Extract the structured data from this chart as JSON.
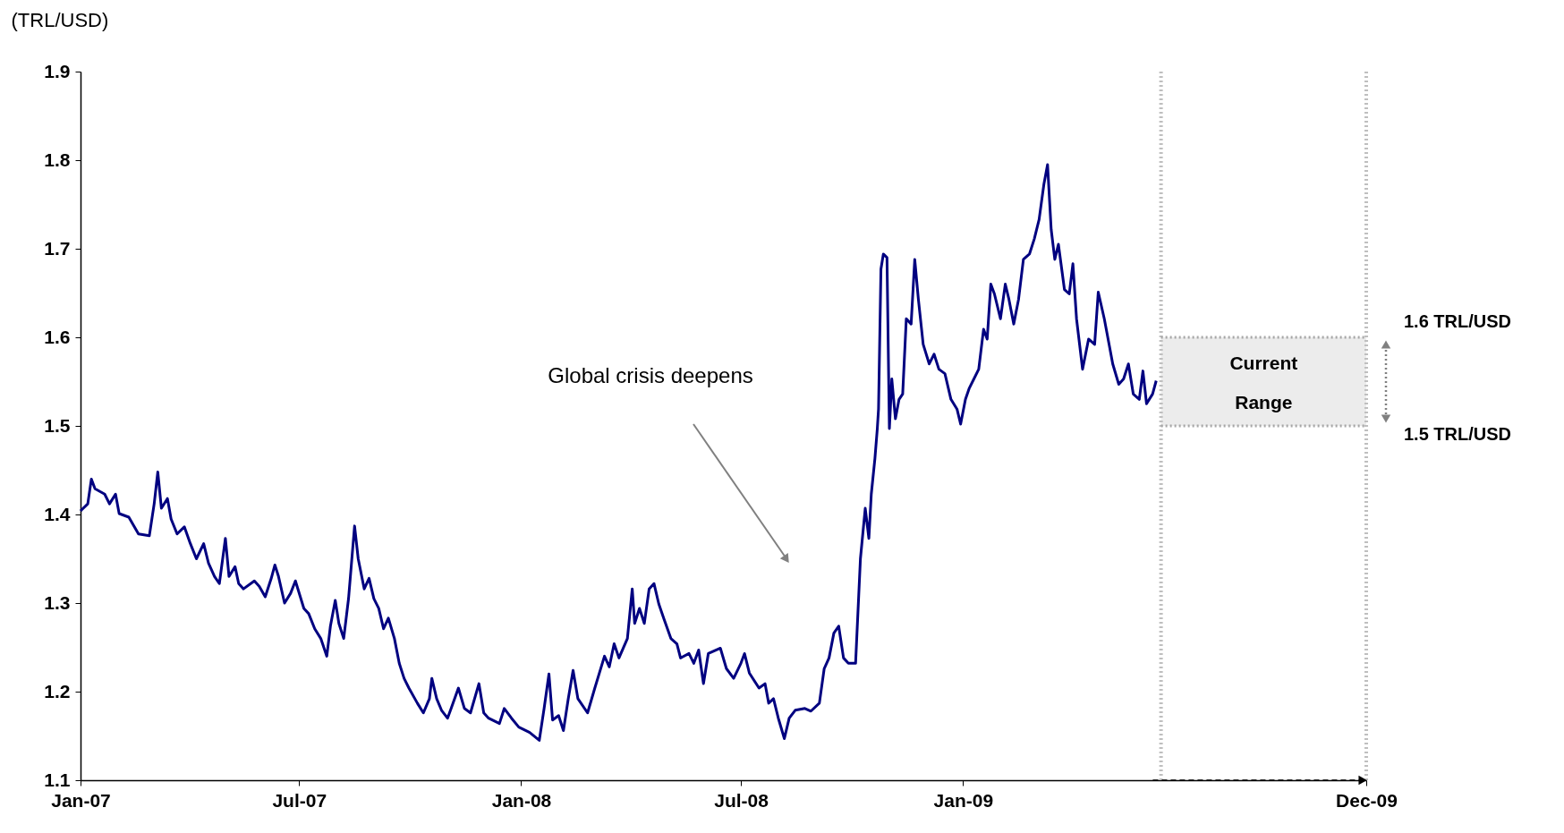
{
  "chart_data": {
    "type": "line",
    "ylabel": "(TRL/USD)",
    "x": [
      "2007-01-01",
      "2007-01-07",
      "2007-01-10",
      "2007-01-13",
      "2007-01-21",
      "2007-01-25",
      "2007-01-30",
      "2007-02-02",
      "2007-02-10",
      "2007-02-18",
      "2007-02-27",
      "2007-03-03",
      "2007-03-06",
      "2007-03-09",
      "2007-03-14",
      "2007-03-17",
      "2007-03-22",
      "2007-03-28",
      "2007-04-02",
      "2007-04-07",
      "2007-04-13",
      "2007-04-17",
      "2007-04-22",
      "2007-04-26",
      "2007-05-01",
      "2007-05-04",
      "2007-05-09",
      "2007-05-12",
      "2007-05-16",
      "2007-05-25",
      "2007-05-29",
      "2007-06-03",
      "2007-06-08",
      "2007-06-11",
      "2007-06-14",
      "2007-06-19",
      "2007-06-24",
      "2007-06-28",
      "2007-07-05",
      "2007-07-09",
      "2007-07-14",
      "2007-07-19",
      "2007-07-24",
      "2007-07-27",
      "2007-07-31",
      "2007-08-03",
      "2007-08-07",
      "2007-08-11",
      "2007-08-16",
      "2007-08-19",
      "2007-08-24",
      "2007-08-28",
      "2007-09-01",
      "2007-09-05",
      "2007-09-09",
      "2007-09-13",
      "2007-09-18",
      "2007-09-22",
      "2007-09-26",
      "2007-09-30",
      "2007-10-07",
      "2007-10-12",
      "2007-10-17",
      "2007-10-19",
      "2007-10-23",
      "2007-10-27",
      "2007-11-01",
      "2007-11-04",
      "2007-11-10",
      "2007-11-15",
      "2007-11-20",
      "2007-11-27",
      "2007-12-01",
      "2007-12-05",
      "2007-12-14",
      "2007-12-18",
      "2007-12-24",
      "2007-12-30",
      "2008-01-08",
      "2008-01-16",
      "2008-01-20",
      "2008-01-24",
      "2008-01-27",
      "2008-02-01",
      "2008-02-05",
      "2008-02-09",
      "2008-02-13",
      "2008-02-17",
      "2008-02-25",
      "2008-03-02",
      "2008-03-10",
      "2008-03-14",
      "2008-03-18",
      "2008-03-22",
      "2008-03-29",
      "2008-04-02",
      "2008-04-04",
      "2008-04-08",
      "2008-04-12",
      "2008-04-16",
      "2008-04-20",
      "2008-04-24",
      "2008-04-28",
      "2008-05-04",
      "2008-05-09",
      "2008-05-12",
      "2008-05-19",
      "2008-05-23",
      "2008-05-27",
      "2008-05-31",
      "2008-06-04",
      "2008-06-14",
      "2008-06-19",
      "2008-06-25",
      "2008-07-01",
      "2008-07-04",
      "2008-07-08",
      "2008-07-16",
      "2008-07-21",
      "2008-07-24",
      "2008-07-28",
      "2008-08-01",
      "2008-08-06",
      "2008-08-10",
      "2008-08-15",
      "2008-08-23",
      "2008-08-28",
      "2008-09-04",
      "2008-09-08",
      "2008-09-12",
      "2008-09-16",
      "2008-09-20",
      "2008-09-24",
      "2008-09-28",
      "2008-10-04",
      "2008-10-08",
      "2008-10-12",
      "2008-10-15",
      "2008-10-17",
      "2008-10-20",
      "2008-10-22",
      "2008-10-23",
      "2008-10-25",
      "2008-10-27",
      "2008-10-30",
      "2008-11-01",
      "2008-11-03",
      "2008-11-06",
      "2008-11-09",
      "2008-11-12",
      "2008-11-15",
      "2008-11-19",
      "2008-11-22",
      "2008-11-25",
      "2008-11-29",
      "2008-12-04",
      "2008-12-08",
      "2008-12-12",
      "2008-12-17",
      "2008-12-22",
      "2008-12-27",
      "2008-12-30",
      "2009-01-03",
      "2009-01-06",
      "2009-01-10",
      "2009-01-14",
      "2009-01-18",
      "2009-01-21",
      "2009-01-24",
      "2009-01-27",
      "2009-02-01",
      "2009-02-05",
      "2009-02-08",
      "2009-02-12",
      "2009-02-16",
      "2009-02-20",
      "2009-02-25",
      "2009-03-01",
      "2009-03-05",
      "2009-03-09",
      "2009-03-12",
      "2009-03-15",
      "2009-03-18",
      "2009-03-21",
      "2009-03-26",
      "2009-03-30",
      "2009-04-02",
      "2009-04-05",
      "2009-04-10",
      "2009-04-15",
      "2009-04-20",
      "2009-04-23",
      "2009-04-28",
      "2009-05-02",
      "2009-05-05",
      "2009-05-10",
      "2009-05-14",
      "2009-05-18",
      "2009-05-22",
      "2009-05-27",
      "2009-05-30",
      "2009-06-02",
      "2009-06-07",
      "2009-06-10"
    ],
    "series": [
      {
        "color": "#000080",
        "values": [
          1.404,
          1.412,
          1.44,
          1.429,
          1.423,
          1.412,
          1.423,
          1.401,
          1.397,
          1.378,
          1.376,
          1.412,
          1.448,
          1.407,
          1.418,
          1.395,
          1.378,
          1.386,
          1.367,
          1.35,
          1.367,
          1.345,
          1.33,
          1.322,
          1.373,
          1.33,
          1.341,
          1.322,
          1.316,
          1.325,
          1.319,
          1.307,
          1.328,
          1.343,
          1.33,
          1.3,
          1.311,
          1.325,
          1.294,
          1.288,
          1.271,
          1.26,
          1.24,
          1.274,
          1.303,
          1.277,
          1.26,
          1.305,
          1.387,
          1.35,
          1.316,
          1.328,
          1.305,
          1.294,
          1.271,
          1.283,
          1.26,
          1.232,
          1.215,
          1.204,
          1.187,
          1.176,
          1.192,
          1.215,
          1.192,
          1.179,
          1.17,
          1.181,
          1.204,
          1.181,
          1.176,
          1.209,
          1.176,
          1.17,
          1.164,
          1.181,
          1.17,
          1.16,
          1.154,
          1.145,
          1.181,
          1.22,
          1.168,
          1.173,
          1.156,
          1.192,
          1.224,
          1.192,
          1.176,
          1.204,
          1.24,
          1.228,
          1.254,
          1.238,
          1.26,
          1.316,
          1.277,
          1.294,
          1.277,
          1.316,
          1.322,
          1.299,
          1.283,
          1.26,
          1.254,
          1.238,
          1.243,
          1.232,
          1.247,
          1.209,
          1.243,
          1.249,
          1.226,
          1.215,
          1.232,
          1.243,
          1.221,
          1.204,
          1.209,
          1.187,
          1.192,
          1.17,
          1.147,
          1.17,
          1.179,
          1.181,
          1.178,
          1.187,
          1.226,
          1.238,
          1.266,
          1.274,
          1.238,
          1.232,
          1.232,
          1.35,
          1.407,
          1.373,
          1.423,
          1.463,
          1.497,
          1.519,
          1.677,
          1.694,
          1.69,
          1.497,
          1.553,
          1.508,
          1.53,
          1.536,
          1.621,
          1.615,
          1.688,
          1.643,
          1.592,
          1.57,
          1.581,
          1.564,
          1.559,
          1.53,
          1.519,
          1.502,
          1.53,
          1.542,
          1.553,
          1.564,
          1.609,
          1.598,
          1.66,
          1.649,
          1.621,
          1.66,
          1.643,
          1.615,
          1.643,
          1.688,
          1.694,
          1.711,
          1.733,
          1.773,
          1.795,
          1.722,
          1.688,
          1.705,
          1.654,
          1.649,
          1.683,
          1.621,
          1.564,
          1.598,
          1.592,
          1.651,
          1.621,
          1.592,
          1.57,
          1.547,
          1.553,
          1.57,
          1.536,
          1.53,
          1.562,
          1.525,
          1.536,
          1.551
        ]
      }
    ],
    "xlim": [
      "2007-01-01",
      "2009-12-01"
    ],
    "xticks": [
      {
        "value": "2007-01-01",
        "label": "Jan-07"
      },
      {
        "value": "2007-07-01",
        "label": "Jul-07"
      },
      {
        "value": "2008-01-01",
        "label": "Jan-08"
      },
      {
        "value": "2008-07-01",
        "label": "Jul-08"
      },
      {
        "value": "2009-01-01",
        "label": "Jan-09"
      },
      {
        "value": "2009-12-01",
        "label": "Dec-09"
      }
    ],
    "ylim": [
      1.1,
      1.9
    ],
    "yticks": [
      1.1,
      1.2,
      1.3,
      1.4,
      1.5,
      1.6,
      1.7,
      1.8,
      1.9
    ],
    "ref_lines": [
      {
        "axis": "x",
        "value": "2009-06-14",
        "color": "#bfbfbf",
        "line_style": "dotted"
      },
      {
        "axis": "x",
        "value": "2009-12-01",
        "color": "#bfbfbf",
        "line_style": "dotted"
      },
      {
        "axis": "y",
        "value": 1.6,
        "label": "1.6 TRL/USD",
        "color": "#a6a6a6",
        "line_style": "dotted"
      },
      {
        "axis": "y",
        "value": 1.5,
        "label": "1.5 TRL/USD",
        "color": "#a6a6a6",
        "line_style": "dotted"
      }
    ],
    "bands": [
      {
        "axis": "y",
        "from": 1.5,
        "to": 1.6,
        "label": "Current Range",
        "color": "#ececec"
      }
    ],
    "annotations": [
      "Global crisis deepens"
    ],
    "grid": false,
    "marker": "none",
    "line_style": "solid"
  }
}
